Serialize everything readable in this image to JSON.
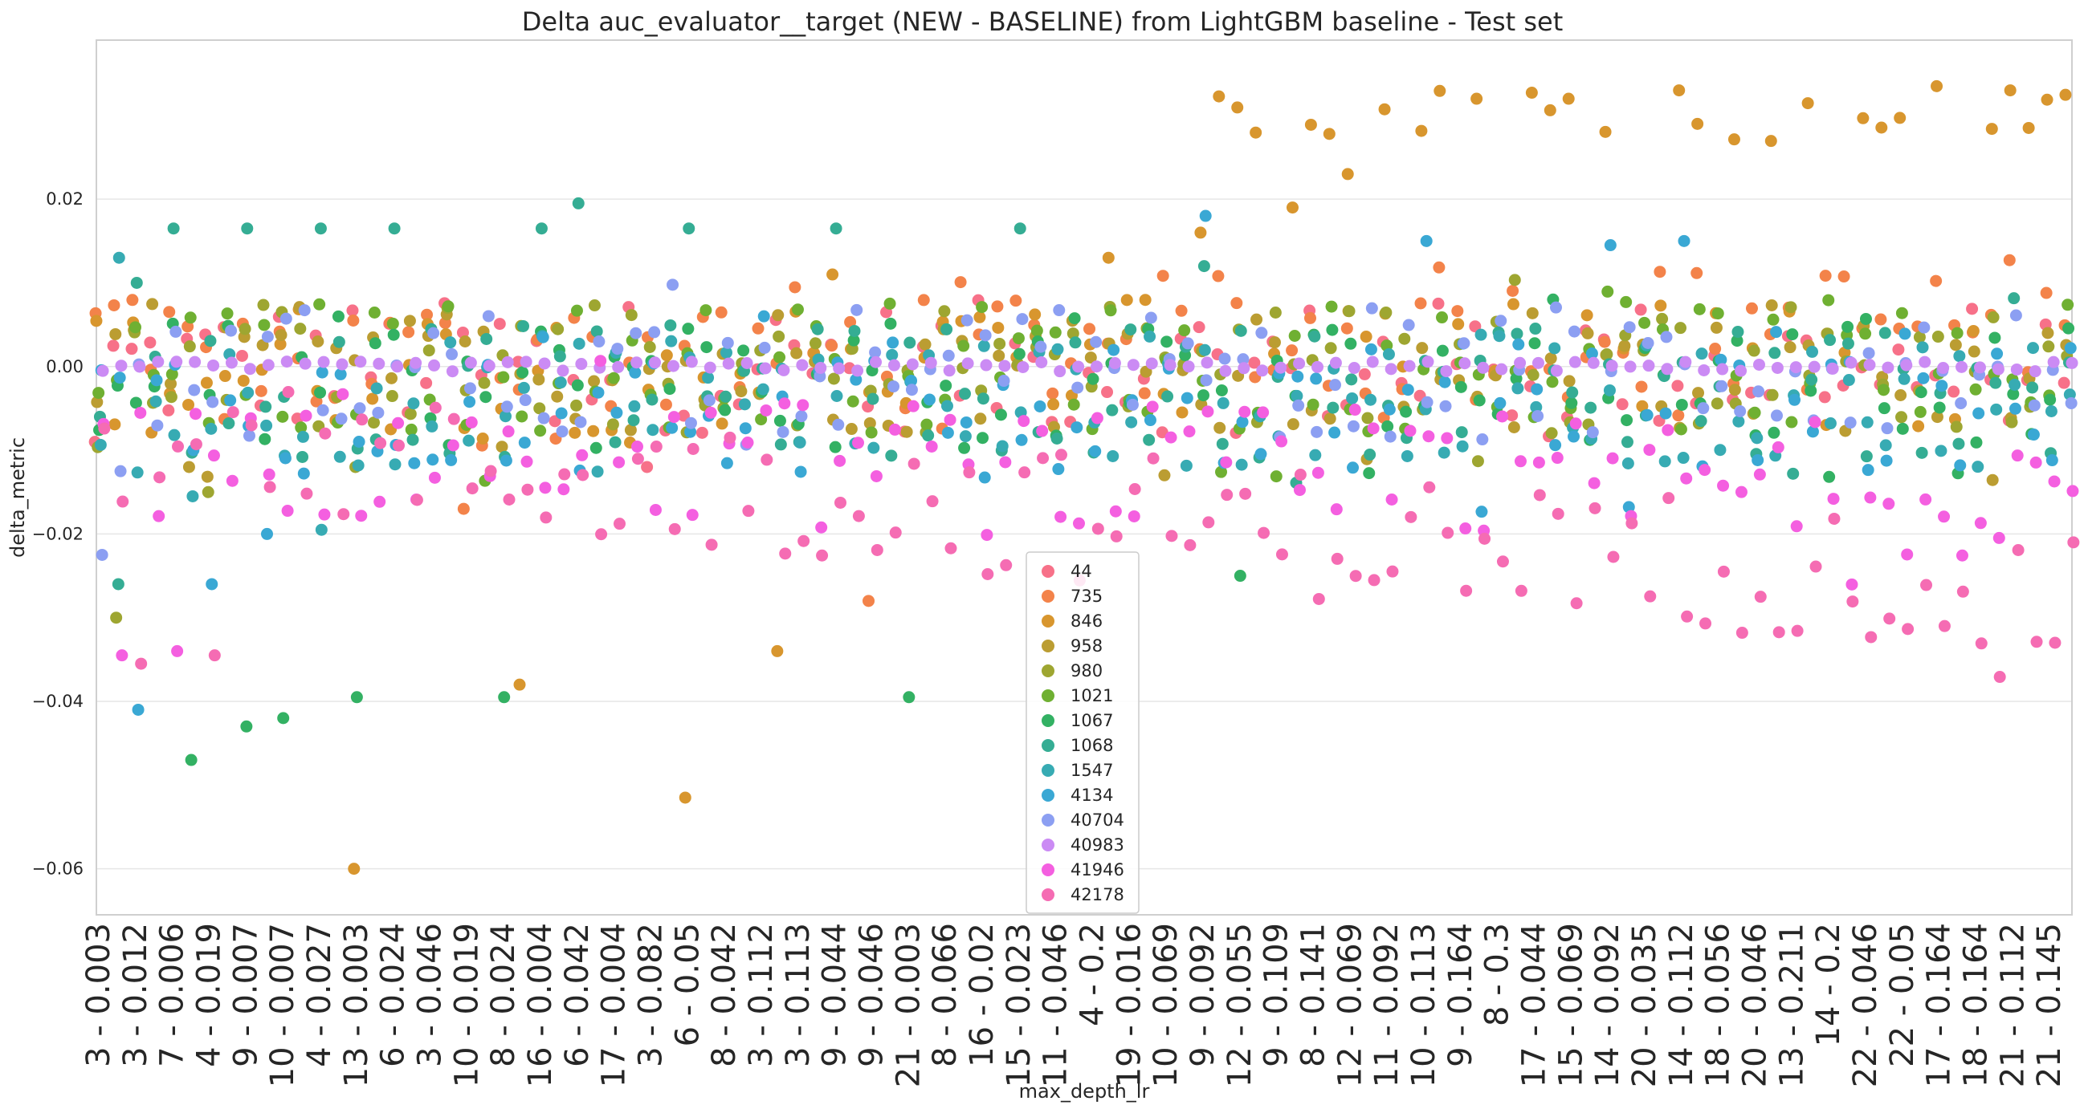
{
  "chart_data": {
    "type": "scatter",
    "title": "Delta auc_evaluator__target (NEW - BASELINE) from LightGBM baseline - Test set",
    "xlabel": "max_depth_lr",
    "ylabel": "delta_metric",
    "ylim": [
      -0.0655,
      0.039
    ],
    "yticks": [
      0.02,
      0.0,
      -0.02,
      -0.04,
      -0.06
    ],
    "ytick_labels": [
      "0.02",
      "0.00",
      "−0.02",
      "−0.04",
      "−0.06"
    ],
    "grid": "horizontal",
    "legend_position": "lower-center",
    "x_tick_labels": [
      "3 - 0.003",
      "3 - 0.012",
      "7 - 0.006",
      "4 - 0.019",
      "9 - 0.007",
      "10 - 0.007",
      "4 - 0.027",
      "13 - 0.003",
      "6 - 0.024",
      "3 - 0.046",
      "10 - 0.019",
      "8 - 0.024",
      "16 - 0.004",
      "6 - 0.042",
      "17 - 0.004",
      "3 - 0.082",
      "6 - 0.05",
      "8 - 0.042",
      "3 - 0.112",
      "3 - 0.113",
      "9 - 0.044",
      "9 - 0.046",
      "21 - 0.003",
      "8 - 0.066",
      "16 - 0.02",
      "15 - 0.023",
      "11 - 0.046",
      "4 - 0.2",
      "19 - 0.016",
      "10 - 0.069",
      "9 - 0.092",
      "12 - 0.055",
      "9 - 0.109",
      "8 - 0.141",
      "12 - 0.069",
      "11 - 0.092",
      "10 - 0.113",
      "9 - 0.164",
      "8 - 0.3",
      "17 - 0.044",
      "15 - 0.069",
      "14 - 0.092",
      "20 - 0.035",
      "14 - 0.112",
      "18 - 0.056",
      "20 - 0.046",
      "13 - 0.211",
      "14 - 0.2",
      "22 - 0.046",
      "22 - 0.05",
      "17 - 0.164",
      "18 - 0.164",
      "21 - 0.112",
      "21 - 0.145"
    ],
    "num_categories": 108,
    "series": [
      {
        "name": "44",
        "color": "#f77189",
        "base": 0.0,
        "extremes": [
          [
            0,
            -0.009
          ],
          [
            30,
            -0.012
          ]
        ]
      },
      {
        "name": "735",
        "color": "#f3834a",
        "base": 0.0,
        "trend": 0.0055,
        "extremes": [
          [
            20,
            -0.017
          ],
          [
            42,
            -0.028
          ],
          [
            54,
            0.0045
          ]
        ]
      },
      {
        "name": "846",
        "color": "#d8962e",
        "base": 0.0,
        "high": true,
        "extremes": [
          [
            14,
            -0.06
          ],
          [
            23,
            -0.038
          ],
          [
            32,
            -0.0515
          ],
          [
            37,
            -0.034
          ],
          [
            40,
            0.011
          ],
          [
            55,
            0.013
          ],
          [
            60,
            0.016
          ],
          [
            65,
            0.019
          ],
          [
            68,
            0.023
          ],
          [
            75,
            0.032
          ],
          [
            80,
            0.032
          ],
          [
            86,
            0.033
          ],
          [
            100,
            0.0335
          ],
          [
            104,
            0.033
          ]
        ]
      },
      {
        "name": "958",
        "color": "#bb9d32",
        "base": 0.0,
        "extremes": [
          [
            5,
            -0.012
          ],
          [
            12,
            0.003
          ],
          [
            20,
            0.003
          ]
        ]
      },
      {
        "name": "980",
        "color": "#9ea631",
        "base": 0.0,
        "extremes": [
          [
            1,
            -0.03
          ],
          [
            6,
            -0.015
          ],
          [
            14,
            -0.012
          ]
        ]
      },
      {
        "name": "1021",
        "color": "#6fb032",
        "base": 0.0,
        "extremes": [
          [
            10,
            -0.006
          ],
          [
            25,
            -0.002
          ]
        ]
      },
      {
        "name": "1067",
        "color": "#33b163",
        "base": -0.002,
        "extremes": [
          [
            5,
            -0.047
          ],
          [
            8,
            -0.043
          ],
          [
            10,
            -0.042
          ],
          [
            14,
            -0.0395
          ],
          [
            22,
            -0.0395
          ],
          [
            44,
            -0.0395
          ],
          [
            62,
            -0.025
          ]
        ]
      },
      {
        "name": "1068",
        "color": "#35ad94",
        "base": -0.003,
        "extremes": [
          [
            1,
            -0.026
          ],
          [
            2,
            0.01
          ],
          [
            4,
            0.0165
          ],
          [
            8,
            0.0165
          ],
          [
            12,
            0.0165
          ],
          [
            16,
            0.0165
          ],
          [
            24,
            0.0165
          ],
          [
            26,
            0.0195
          ],
          [
            32,
            0.0165
          ],
          [
            40,
            0.0165
          ],
          [
            50,
            0.0165
          ],
          [
            60,
            0.012
          ]
        ]
      },
      {
        "name": "1547",
        "color": "#37abb3",
        "base": -0.004,
        "extremes": [
          [
            1,
            0.013
          ],
          [
            5,
            -0.0155
          ],
          [
            12,
            -0.0195
          ]
        ]
      },
      {
        "name": "4134",
        "color": "#3aa8d4",
        "base": -0.005,
        "extremes": [
          [
            2,
            -0.041
          ],
          [
            6,
            -0.026
          ],
          [
            9,
            -0.02
          ],
          [
            60,
            0.018
          ],
          [
            72,
            0.015
          ],
          [
            82,
            0.0145
          ],
          [
            86,
            0.015
          ]
        ]
      },
      {
        "name": "40704",
        "color": "#8c9ff2",
        "base": -0.0005,
        "extremes": [
          [
            0,
            -0.0225
          ],
          [
            1,
            -0.0125
          ]
        ]
      },
      {
        "name": "40983",
        "color": "#cb8bf4",
        "base": 0.0,
        "extremes": []
      },
      {
        "name": "41946",
        "color": "#f45fe0",
        "base": -0.01,
        "trend": -0.005,
        "extremes": [
          [
            1,
            -0.0345
          ],
          [
            4,
            -0.034
          ]
        ]
      },
      {
        "name": "42178",
        "color": "#f56cb3",
        "base": -0.009,
        "trend": -0.018,
        "extremes": [
          [
            2,
            -0.0355
          ],
          [
            6,
            -0.0345
          ],
          [
            90,
            -0.0275
          ],
          [
            100,
            -0.031
          ],
          [
            106,
            -0.033
          ]
        ]
      }
    ]
  }
}
